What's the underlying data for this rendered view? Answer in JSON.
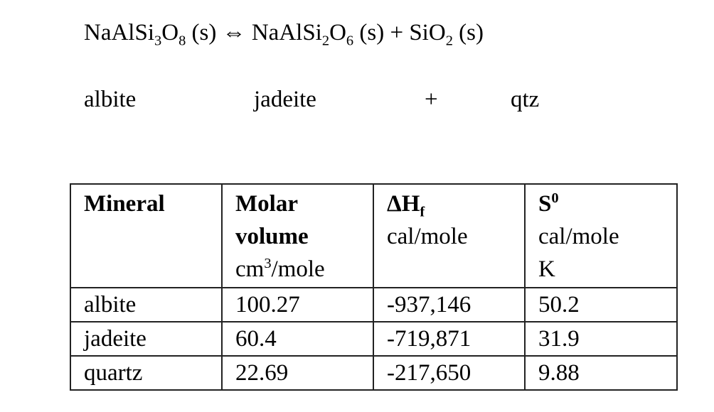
{
  "equation": [
    {
      "text": "NaAlSi"
    },
    {
      "text": "3",
      "sub": true
    },
    {
      "text": "O"
    },
    {
      "text": "8",
      "sub": true
    },
    {
      "text": " (s) ⇔ NaAlSi"
    },
    {
      "text": "2",
      "sub": true
    },
    {
      "text": "O"
    },
    {
      "text": "6",
      "sub": true
    },
    {
      "text": " (s) + SiO"
    },
    {
      "text": "2",
      "sub": true
    },
    {
      "text": " (s)"
    }
  ],
  "labels": [
    "albite",
    "jadeite",
    "+",
    "qtz"
  ],
  "table": {
    "header": [
      {
        "lines": [
          [
            {
              "text": "Mineral",
              "bold": true
            }
          ]
        ]
      },
      {
        "lines": [
          [
            {
              "text": "Molar",
              "bold": true
            }
          ],
          [
            {
              "text": "volume",
              "bold": true
            }
          ],
          [
            {
              "text": "cm"
            },
            {
              "text": "3",
              "sup": true
            },
            {
              "text": "/mole"
            }
          ]
        ]
      },
      {
        "lines": [
          [
            {
              "text": "ΔH",
              "bold": true
            },
            {
              "text": "f",
              "bold": true,
              "sub": true
            }
          ],
          [
            {
              "text": "cal/mole"
            }
          ]
        ]
      },
      {
        "lines": [
          [
            {
              "text": "S",
              "bold": true
            },
            {
              "text": "0",
              "bold": true,
              "sup": true
            }
          ],
          [
            {
              "text": "cal/mole"
            }
          ],
          [
            {
              "text": "K"
            }
          ]
        ]
      }
    ],
    "rows": [
      [
        "albite",
        "100.27",
        "-937,146",
        "50.2"
      ],
      [
        "jadeite",
        "60.4",
        "-719,871",
        "31.9"
      ],
      [
        "quartz",
        "22.69",
        "-217,650",
        "9.88"
      ]
    ]
  }
}
